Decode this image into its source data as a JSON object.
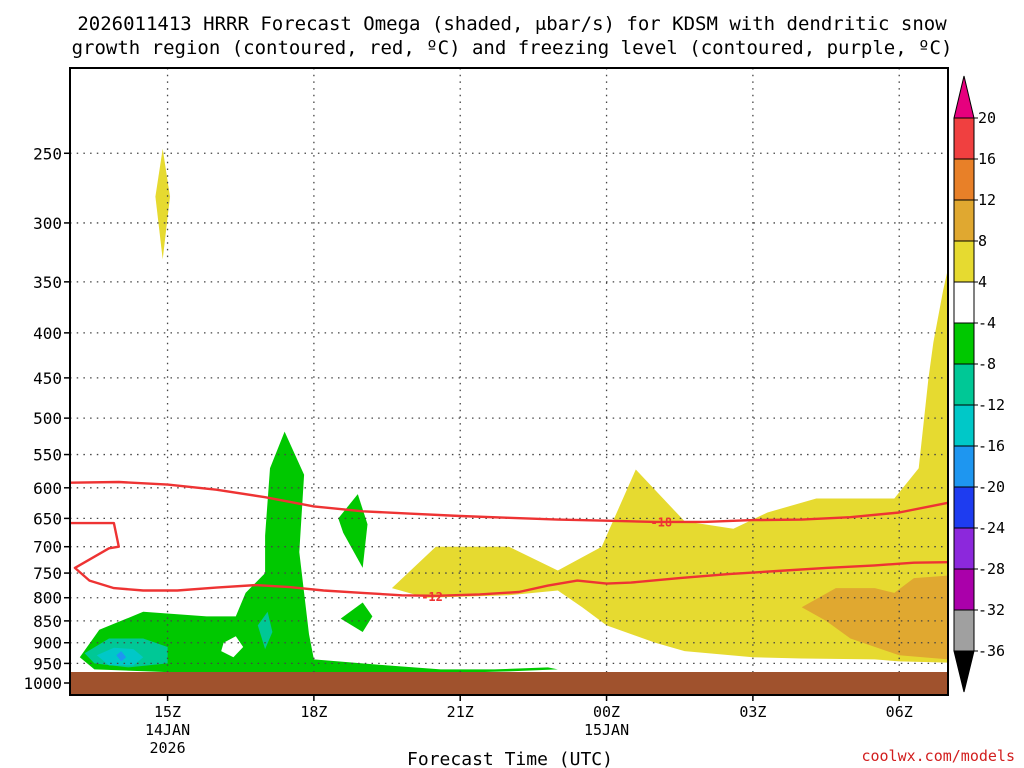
{
  "title_line1": "2026011413 HRRR Forecast Omega (shaded, μbar/s) for KDSM with dendritic snow",
  "title_line2": "growth region (contoured, red, ºC) and freezing level (contoured, purple, ºC)",
  "credit": "coolwx.com/models",
  "chart_data": {
    "type": "contour",
    "title": "2026011413 HRRR Forecast Omega (shaded, μbar/s) for KDSM with dendritic snow growth region (contoured, red, ºC) and freezing level (contoured, purple, ºC)",
    "xlabel": "Forecast Time (UTC)",
    "ylabel": "",
    "y_scale": "log-pressure (hPa), inverted",
    "ylim": [
      1000,
      200
    ],
    "grid": true,
    "y_ticks": [
      250,
      300,
      350,
      400,
      450,
      500,
      550,
      600,
      650,
      700,
      750,
      800,
      850,
      900,
      950,
      1000
    ],
    "x_ticks": [
      {
        "hour": 15,
        "lines": [
          "15Z",
          "14JAN",
          "2026"
        ]
      },
      {
        "hour": 18,
        "lines": [
          "18Z"
        ]
      },
      {
        "hour": 21,
        "lines": [
          "21Z"
        ]
      },
      {
        "hour": 24,
        "lines": [
          "00Z",
          "15JAN"
        ]
      },
      {
        "hour": 27,
        "lines": [
          "03Z"
        ]
      },
      {
        "hour": 30,
        "lines": [
          "06Z"
        ]
      }
    ],
    "xlim": [
      13,
      31
    ],
    "colorbar": {
      "labels": [
        "20",
        "16",
        "12",
        "8",
        "4",
        "-4",
        "-8",
        "-12",
        "-16",
        "-20",
        "-24",
        "-28",
        "-32",
        "-36"
      ],
      "colors": [
        "#e6007e",
        "#f04040",
        "#e88028",
        "#e0a830",
        "#e6da30",
        "#ffffff",
        "#00c800",
        "#00c896",
        "#00c8c8",
        "#1e96f0",
        "#1e3cf0",
        "#8c28dc",
        "#aa00aa",
        "#a0a0a0",
        "#000000"
      ]
    },
    "terrain_color": "#a0522d",
    "shading": [
      {
        "color": "#e6da30",
        "omega": "4 to 8",
        "points": [
          [
            14.9,
            247
          ],
          [
            15.05,
            280
          ],
          [
            14.9,
            330
          ],
          [
            14.75,
            280
          ]
        ]
      },
      {
        "color": "#e6da30",
        "omega": "4 to 8",
        "points": [
          [
            19.6,
            780
          ],
          [
            20.5,
            700
          ],
          [
            22.0,
            700
          ],
          [
            23.0,
            745
          ],
          [
            23.9,
            700
          ],
          [
            24.6,
            572
          ],
          [
            25.6,
            655
          ],
          [
            26.6,
            668
          ],
          [
            27.3,
            640
          ],
          [
            28.3,
            617
          ],
          [
            29.9,
            617
          ],
          [
            30.4,
            570
          ],
          [
            30.6,
            450
          ],
          [
            30.7,
            410
          ],
          [
            30.9,
            358
          ],
          [
            31,
            338
          ],
          [
            31,
            948
          ],
          [
            30.0,
            945
          ],
          [
            29.5,
            940
          ],
          [
            28.0,
            938
          ],
          [
            27.0,
            935
          ],
          [
            25.6,
            920
          ],
          [
            25.0,
            900
          ],
          [
            24.0,
            860
          ],
          [
            23.5,
            820
          ],
          [
            23.0,
            785
          ],
          [
            22.0,
            795
          ],
          [
            20.3,
            800
          ]
        ]
      },
      {
        "color": "#e0a830",
        "omega": "8 to 12",
        "points": [
          [
            28.0,
            820
          ],
          [
            28.7,
            780
          ],
          [
            29.5,
            780
          ],
          [
            29.9,
            790
          ],
          [
            30.3,
            760
          ],
          [
            31,
            755
          ],
          [
            31,
            940
          ],
          [
            30.0,
            930
          ],
          [
            29.0,
            890
          ],
          [
            28.5,
            850
          ]
        ]
      },
      {
        "color": "#00c800",
        "omega": "-4 to -8",
        "points": [
          [
            16.6,
            790
          ],
          [
            17.0,
            750
          ],
          [
            17.0,
            680
          ],
          [
            17.1,
            570
          ],
          [
            17.4,
            518
          ],
          [
            17.8,
            580
          ],
          [
            17.7,
            710
          ],
          [
            17.8,
            790
          ],
          [
            17.9,
            880
          ],
          [
            18.0,
            940
          ],
          [
            19.5,
            955
          ],
          [
            20.6,
            965
          ],
          [
            21.7,
            965
          ],
          [
            22.8,
            960
          ],
          [
            23.0,
            965
          ],
          [
            22.0,
            970
          ],
          [
            20.5,
            975
          ],
          [
            19.0,
            975
          ],
          [
            18.0,
            978
          ],
          [
            16.9,
            975
          ],
          [
            15.0,
            972
          ],
          [
            13.5,
            965
          ],
          [
            13.2,
            935
          ],
          [
            13.6,
            870
          ],
          [
            14.5,
            830
          ],
          [
            15.8,
            840
          ],
          [
            16.4,
            840
          ]
        ]
      },
      {
        "color": "#00c800",
        "omega": "-4 to -8",
        "points": [
          [
            18.5,
            650
          ],
          [
            18.9,
            610
          ],
          [
            19.1,
            660
          ],
          [
            19.0,
            740
          ],
          [
            18.6,
            675
          ]
        ]
      },
      {
        "color": "#00c800",
        "omega": "-4 to -8",
        "points": [
          [
            18.55,
            845
          ],
          [
            19.0,
            810
          ],
          [
            19.2,
            840
          ],
          [
            19.0,
            875
          ]
        ]
      },
      {
        "color": "#00c896",
        "omega": "-8 to -12",
        "points": [
          [
            13.3,
            925
          ],
          [
            13.8,
            890
          ],
          [
            14.5,
            890
          ],
          [
            15.0,
            910
          ],
          [
            15.0,
            950
          ],
          [
            14.2,
            960
          ],
          [
            13.5,
            950
          ]
        ]
      },
      {
        "color": "#00c896",
        "omega": "-8 to -12",
        "points": [
          [
            16.85,
            860
          ],
          [
            17.05,
            830
          ],
          [
            17.15,
            875
          ],
          [
            17.0,
            915
          ]
        ]
      },
      {
        "color": "#00c8c8",
        "omega": "-12 to -16",
        "points": [
          [
            13.55,
            930
          ],
          [
            13.9,
            912
          ],
          [
            14.3,
            915
          ],
          [
            14.5,
            935
          ],
          [
            14.3,
            955
          ],
          [
            13.8,
            955
          ]
        ]
      },
      {
        "color": "#1e96f0",
        "omega": "-16 to -20",
        "points": [
          [
            13.95,
            930
          ],
          [
            14.05,
            920
          ],
          [
            14.15,
            935
          ],
          [
            14.05,
            945
          ]
        ]
      },
      {
        "color": "#ffffff",
        "omega": "-4 to 4",
        "points": [
          [
            16.15,
            900
          ],
          [
            16.4,
            885
          ],
          [
            16.55,
            910
          ],
          [
            16.35,
            935
          ],
          [
            16.1,
            920
          ]
        ]
      }
    ],
    "contours": [
      {
        "label": "-18",
        "label_at": [
          24.9,
          655
        ],
        "color": "#ee3333",
        "points": [
          [
            13,
            592
          ],
          [
            14,
            591
          ],
          [
            15,
            595
          ],
          [
            16,
            603
          ],
          [
            17,
            615
          ],
          [
            18,
            630
          ],
          [
            19,
            638
          ],
          [
            20,
            642
          ],
          [
            21,
            646
          ],
          [
            22,
            649
          ],
          [
            23,
            652
          ],
          [
            24,
            654
          ],
          [
            25,
            656
          ],
          [
            26,
            656
          ],
          [
            27,
            653
          ],
          [
            28,
            652
          ],
          [
            29,
            648
          ],
          [
            30,
            640
          ],
          [
            31,
            624
          ]
        ]
      },
      {
        "label": "-12",
        "label_at": [
          20.2,
          796
        ],
        "color": "#ee3333",
        "points": [
          [
            13,
            658
          ],
          [
            13.9,
            658
          ],
          [
            14.0,
            700
          ],
          [
            13.8,
            703
          ],
          [
            13.1,
            740
          ],
          [
            13.4,
            765
          ],
          [
            13.9,
            780
          ],
          [
            14.5,
            785
          ],
          [
            15.2,
            785
          ],
          [
            16.0,
            779
          ],
          [
            16.8,
            774
          ],
          [
            17.5,
            778
          ],
          [
            18.2,
            785
          ],
          [
            19.0,
            790
          ],
          [
            19.8,
            795
          ],
          [
            20.5,
            796
          ],
          [
            21.4,
            793
          ],
          [
            22.2,
            788
          ],
          [
            22.8,
            775
          ],
          [
            23.4,
            765
          ],
          [
            24.0,
            771
          ],
          [
            24.5,
            769
          ],
          [
            25.5,
            760
          ],
          [
            26.5,
            752
          ],
          [
            27.5,
            746
          ],
          [
            28.5,
            740
          ],
          [
            29.5,
            735
          ],
          [
            30.3,
            730
          ],
          [
            31,
            729
          ]
        ]
      }
    ]
  }
}
